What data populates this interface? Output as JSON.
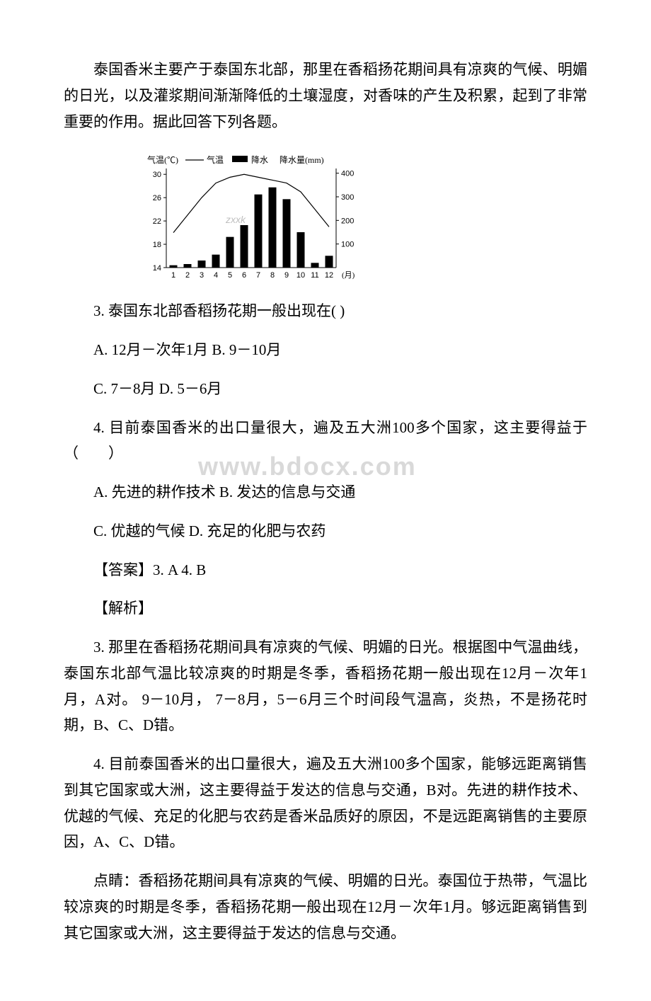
{
  "intro": "泰国香米主要产于泰国东北部，那里在香稻扬花期间具有凉爽的气候、明媚的日光，以及灌浆期间渐渐降低的土壤湿度，对香味的产生及积累，起到了非常重要的作用。据此回答下列各题。",
  "q3": {
    "stem": "3. 泰国东北部香稻扬花期一般出现在( )",
    "optA": "A. 12月－次年1月 B. 9－10月",
    "optC": "C. 7－8月 D. 5－6月"
  },
  "q4": {
    "stem": "4. 目前泰国香米的出口量很大，遍及五大洲100多个国家，这主要得益于（　　）",
    "optA": "A. 先进的耕作技术 B. 发达的信息与交通",
    "optC": "C. 优越的气候 D. 充足的化肥与农药"
  },
  "answer": "【答案】3. A 4. B",
  "analysis_label": "【解析】",
  "analysis_3": "3. 那里在香稻扬花期间具有凉爽的气候、明媚的日光。根据图中气温曲线，泰国东北部气温比较凉爽的时期是冬季，香稻扬花期一般出现在12月－次年1月，A对。 9－10月， 7－8月，5－6月三个时间段气温高，炎热，不是扬花时期，B、C、D错。",
  "analysis_4": "4. 目前泰国香米的出口量很大，遍及五大洲100多个国家，能够远距离销售到其它国家或大洲，这主要得益于发达的信息与交通，B对。先进的耕作技术、优越的气候、充足的化肥与农药是香米品质好的原因，不是远距离销售的主要原因，A、C、D错。",
  "tip": "点睛：香稻扬花期间具有凉爽的气候、明媚的日光。泰国位于热带，气温比较凉爽的时期是冬季，香稻扬花期一般出现在12月－次年1月。够远距离销售到其它国家或大洲，这主要得益于发达的信息与交通。",
  "watermark": "www.bdocx.com",
  "chart": {
    "type": "combo-bar-line",
    "title_left": "气温(℃)",
    "legend_temp": "气温",
    "legend_precip": "降水",
    "title_right": "降水量(mm)",
    "x_labels": [
      "1",
      "2",
      "3",
      "4",
      "5",
      "6",
      "7",
      "8",
      "9",
      "10",
      "11",
      "12"
    ],
    "x_unit": "(月)",
    "y_left_ticks": [
      14,
      18,
      22,
      26,
      30
    ],
    "y_right_ticks": [
      100,
      200,
      300,
      400
    ],
    "temp_values": [
      20,
      23,
      26,
      28.5,
      29.5,
      30,
      29.5,
      29,
      28.5,
      27,
      24,
      21
    ],
    "precip_values": [
      10,
      15,
      30,
      55,
      130,
      180,
      310,
      340,
      290,
      150,
      20,
      50
    ],
    "bar_color": "#000000",
    "line_color": "#000000",
    "axis_color": "#000000",
    "bg_color": "#ffffff",
    "font_size_axis": 11,
    "font_size_label": 12,
    "line_width": 1.2,
    "bar_width": 0.55,
    "y_left_min": 14,
    "y_left_max": 31,
    "y_right_min": 0,
    "y_right_max": 420,
    "zxxk_mark": "zxxk"
  }
}
